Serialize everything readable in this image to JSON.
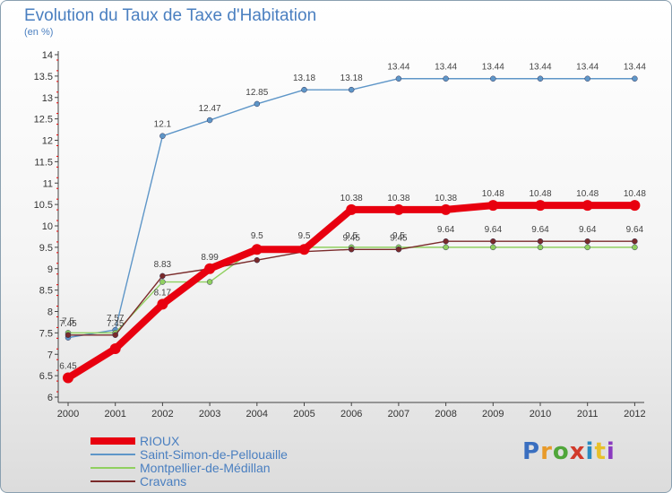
{
  "title": "Evolution du Taux de Taxe d'Habitation",
  "subtitle": "(en %)",
  "logo": {
    "text": "Proxiti",
    "colors": [
      "#3a6fc0",
      "#e89a2a",
      "#50a63a",
      "#d13a2a",
      "#2a8ac0",
      "#e8c02a",
      "#8a3ac0"
    ]
  },
  "chart_data": {
    "type": "line",
    "title": "Evolution du Taux de Taxe d'Habitation",
    "ylabel": "(en %)",
    "xlabel": "",
    "x": [
      "2000",
      "2001",
      "2002",
      "2003",
      "2004",
      "2005",
      "2006",
      "2007",
      "2008",
      "2009",
      "2010",
      "2011",
      "2012"
    ],
    "ylim": [
      6,
      14
    ],
    "yticks": [
      6,
      6.5,
      7,
      7.5,
      8,
      8.5,
      9,
      9.5,
      10,
      10.5,
      11,
      11.5,
      12,
      12.5,
      13,
      13.5,
      14
    ],
    "grid": false,
    "legend_position": "bottom-left",
    "series": [
      {
        "name": "RIOUX",
        "color": "#e8000f",
        "values": [
          6.45,
          7.13,
          8.17,
          9.0,
          9.45,
          9.45,
          10.38,
          10.38,
          10.38,
          10.48,
          10.48,
          10.48,
          10.48
        ],
        "labels": [
          "6.45",
          "",
          "8.17",
          "",
          "",
          "",
          "10.38",
          "10.38",
          "10.38",
          "10.48",
          "10.48",
          "10.48",
          "10.48"
        ]
      },
      {
        "name": "Saint-Simon-de-Pellouaille",
        "color": "#5e96c8",
        "values": [
          7.39,
          7.57,
          12.1,
          12.47,
          12.85,
          13.18,
          13.18,
          13.44,
          13.44,
          13.44,
          13.44,
          13.44,
          13.44
        ],
        "labels": [
          "",
          "7.57",
          "12.1",
          "12.47",
          "12.85",
          "13.18",
          "13.18",
          "13.44",
          "13.44",
          "13.44",
          "13.44",
          "13.44",
          "13.44"
        ]
      },
      {
        "name": "Montpellier-de-Médillan",
        "color": "#90d060",
        "values": [
          7.5,
          7.5,
          8.69,
          8.69,
          9.5,
          9.5,
          9.5,
          9.5,
          9.5,
          9.5,
          9.5,
          9.5,
          9.5
        ],
        "labels": [
          "7.5",
          "",
          "",
          "",
          "9.5",
          "9.5",
          "9.5",
          "9.5",
          "",
          "",
          "",
          "",
          ""
        ]
      },
      {
        "name": "Cravans",
        "color": "#7a2a2a",
        "values": [
          7.45,
          7.45,
          8.83,
          9.0,
          9.2,
          9.4,
          9.45,
          9.45,
          9.64,
          9.64,
          9.64,
          9.64,
          9.64
        ],
        "labels": [
          "7.45",
          "7.45",
          "8.83",
          "8.99",
          "",
          "",
          "9.45",
          "9.45",
          "9.64",
          "9.64",
          "9.64",
          "9.64",
          "9.64"
        ]
      }
    ]
  }
}
